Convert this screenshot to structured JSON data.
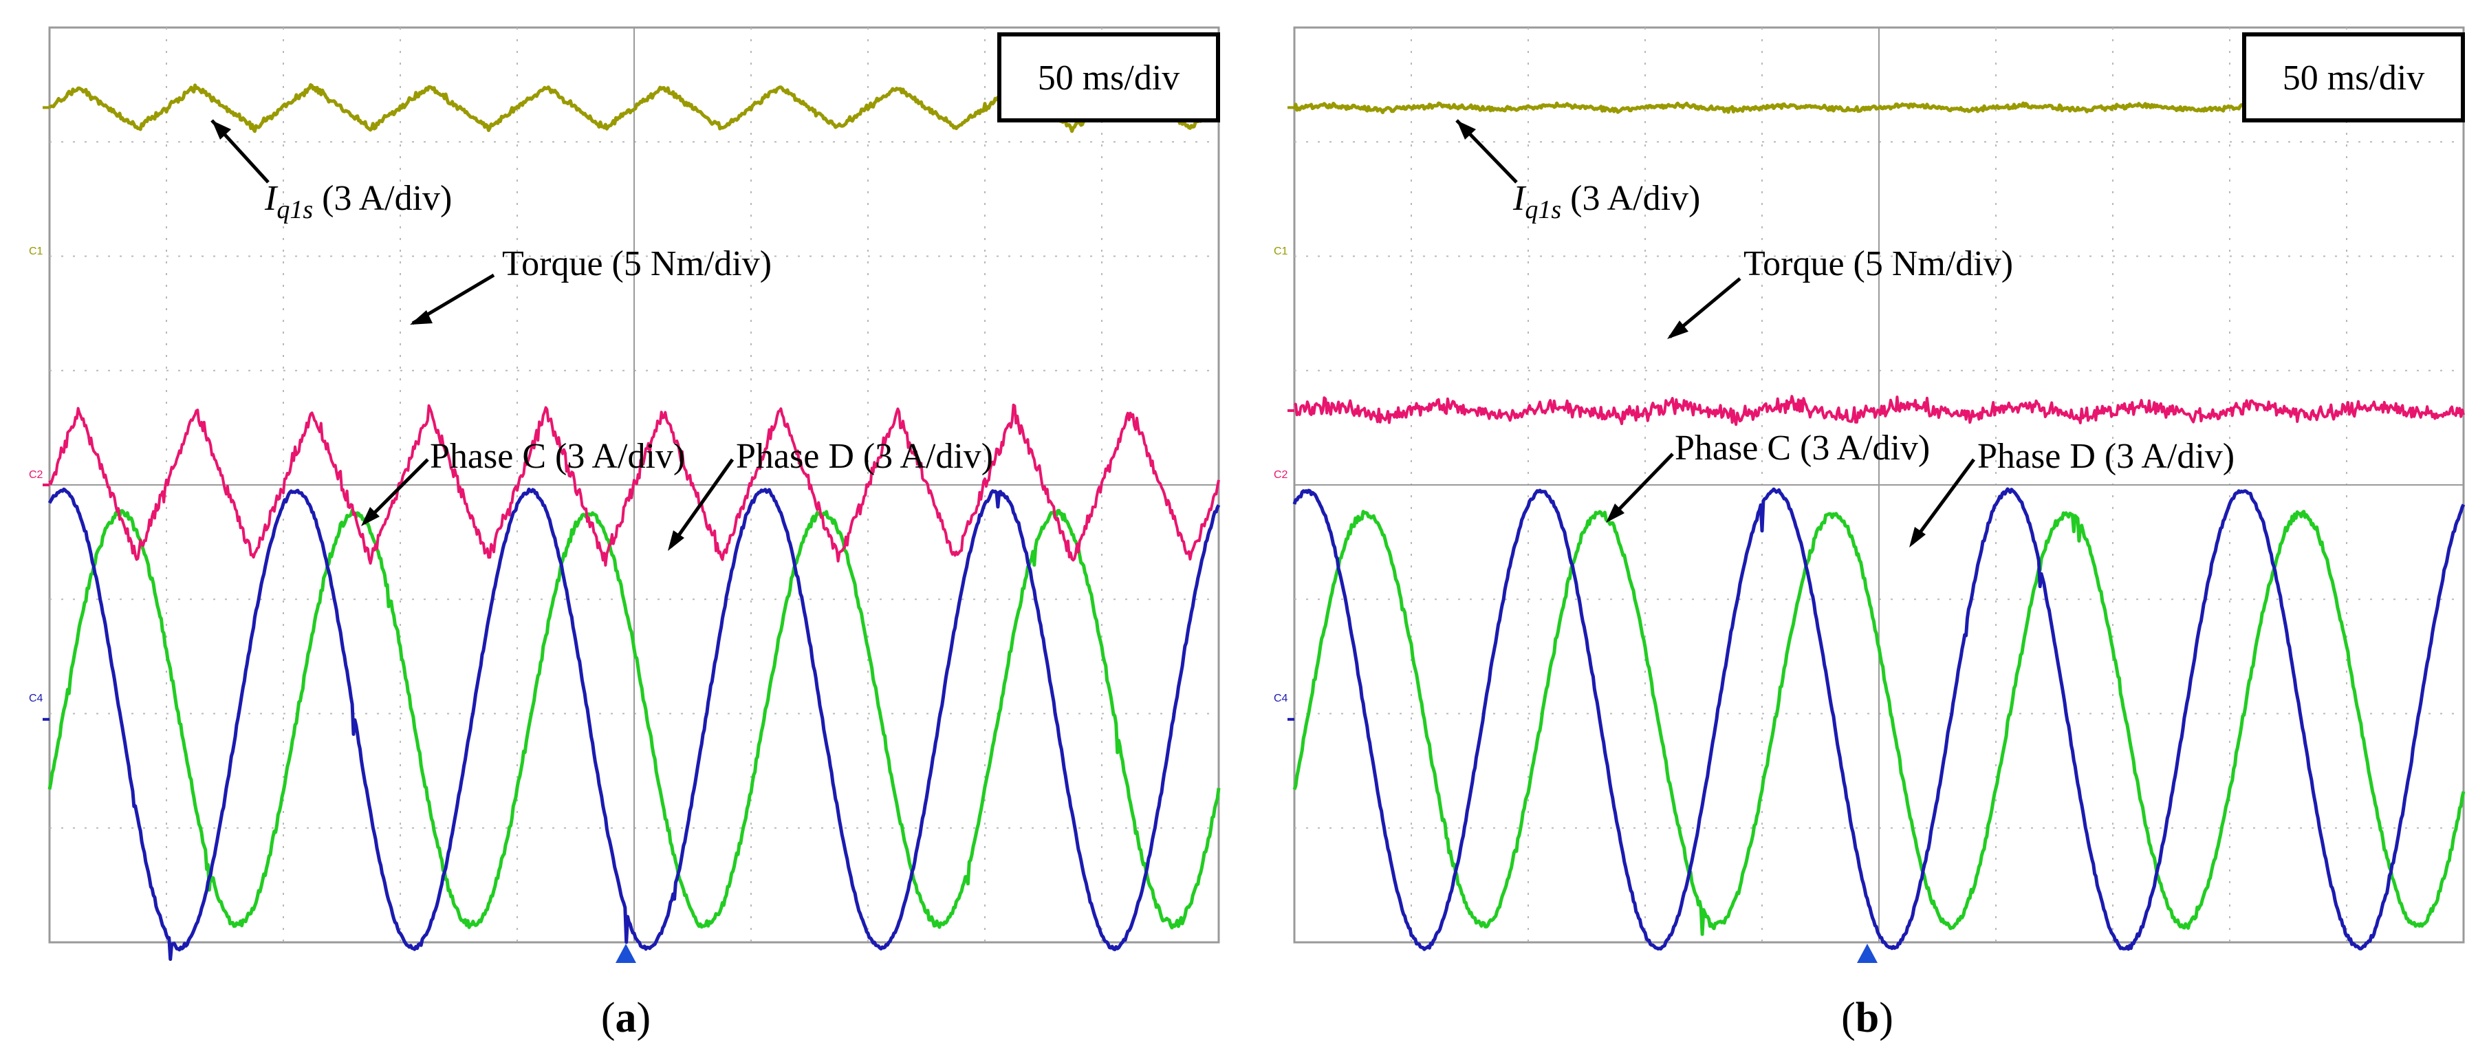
{
  "time_scale": "50 ms/div",
  "channels": {
    "c1": "C1",
    "c2": "C2",
    "c4": "C4"
  },
  "annotation_labels": {
    "iq1s_symbol": "I",
    "iq1s_subscript": "q1s",
    "iq1s_scale": " (3 A/div)",
    "torque": "Torque (5 Nm/div)",
    "phase_c": "Phase C (3 A/div)",
    "phase_d": "Phase D (3 A/div)"
  },
  "colors": {
    "iq1s": "#999900",
    "torque": "#e8156e",
    "phase_c": "#1b1bb0",
    "phase_d": "#22cc22",
    "grid": "#b8b8b8",
    "marker_blue": "#1a4fd6"
  },
  "chart_data": [
    {
      "type": "line",
      "panel": "(a)",
      "caption_letter": "a",
      "time_div_ms": 50,
      "x_divisions": 10,
      "y_divisions": 8,
      "series": [
        {
          "name": "Iq1s",
          "scale": "3 A/div",
          "offset_div": 7.3,
          "dc": 0,
          "ripple_amp_div": 0.18,
          "ripple_periods": 10,
          "noise_div": 0.04
        },
        {
          "name": "Torque",
          "scale": "5 Nm/div",
          "offset_div": 4.0,
          "dc": 0,
          "ripple_amp_div": 0.65,
          "ripple_periods": 10,
          "noise_div": 0.1
        },
        {
          "name": "Phase C",
          "scale": "3 A/div",
          "offset_div": 1.95,
          "amplitude_div": 2.0,
          "periods": 5.0,
          "phase_deg": 70,
          "noise_div": 0.03
        },
        {
          "name": "Phase D",
          "scale": "3 A/div",
          "offset_div": 1.95,
          "amplitude_div": 1.8,
          "periods": 5.0,
          "phase_deg": -20,
          "noise_div": 0.05
        }
      ]
    },
    {
      "type": "line",
      "panel": "(b)",
      "caption_letter": "b",
      "time_div_ms": 50,
      "x_divisions": 10,
      "y_divisions": 8,
      "series": [
        {
          "name": "Iq1s",
          "scale": "3 A/div",
          "offset_div": 7.3,
          "dc": 0,
          "ripple_amp_div": 0.02,
          "ripple_periods": 10,
          "noise_div": 0.03
        },
        {
          "name": "Torque",
          "scale": "5 Nm/div",
          "offset_div": 4.65,
          "dc": 0,
          "ripple_amp_div": 0.05,
          "ripple_periods": 10,
          "noise_div": 0.1
        },
        {
          "name": "Phase C",
          "scale": "3 A/div",
          "offset_div": 1.95,
          "amplitude_div": 2.0,
          "periods": 5.0,
          "phase_deg": 70,
          "noise_div": 0.03
        },
        {
          "name": "Phase D",
          "scale": "3 A/div",
          "offset_div": 1.95,
          "amplitude_div": 1.8,
          "periods": 5.0,
          "phase_deg": -20,
          "noise_div": 0.05
        }
      ]
    }
  ]
}
